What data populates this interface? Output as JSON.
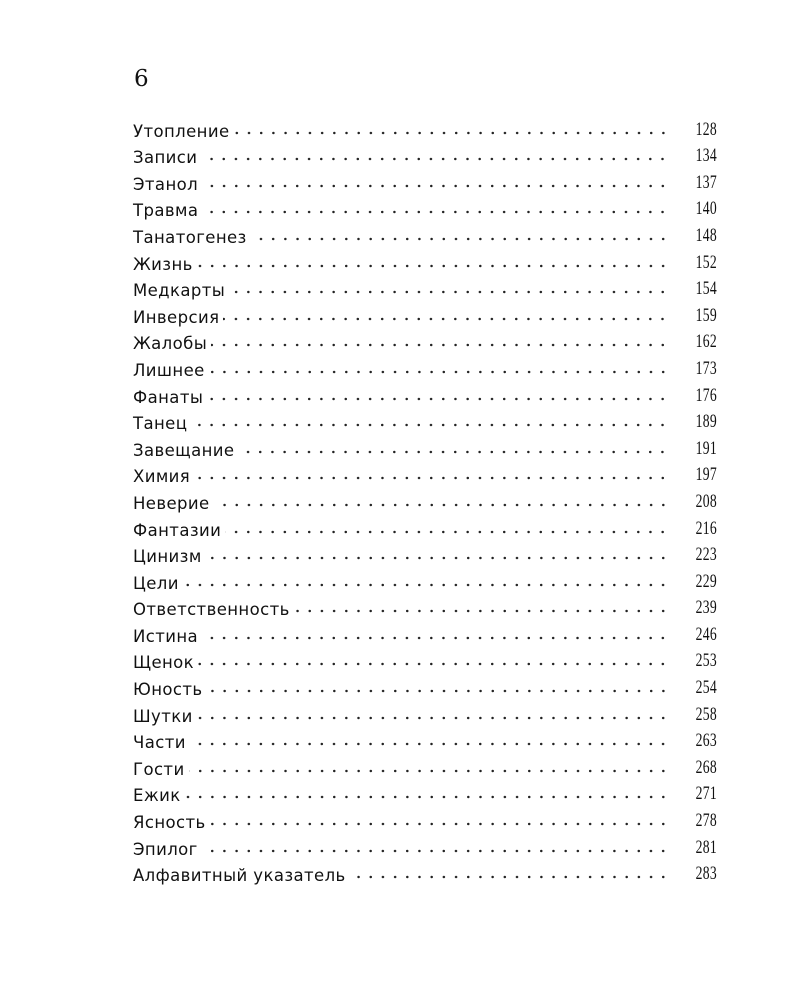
{
  "page_number": "6",
  "entries": [
    {
      "title": "Утопление",
      "page": "128"
    },
    {
      "title": "Записи",
      "page": "134"
    },
    {
      "title": "Этанол",
      "page": "137"
    },
    {
      "title": "Травма",
      "page": "140"
    },
    {
      "title": "Танатогенез",
      "page": "148"
    },
    {
      "title": "Жизнь",
      "page": "152"
    },
    {
      "title": "Медкарты",
      "page": "154"
    },
    {
      "title": "Инверсия",
      "page": "159"
    },
    {
      "title": "Жалобы",
      "page": "162"
    },
    {
      "title": "Лишнее",
      "page": "173"
    },
    {
      "title": "Фанаты",
      "page": "176"
    },
    {
      "title": "Танец",
      "page": "189"
    },
    {
      "title": "Завещание",
      "page": "191"
    },
    {
      "title": "Химия",
      "page": "197"
    },
    {
      "title": "Неверие",
      "page": "208"
    },
    {
      "title": "Фантазии",
      "page": "216"
    },
    {
      "title": "Цинизм",
      "page": "223"
    },
    {
      "title": "Цели",
      "page": "229"
    },
    {
      "title": "Ответственность",
      "page": "239"
    },
    {
      "title": "Истина",
      "page": "246"
    },
    {
      "title": "Щенок",
      "page": "253"
    },
    {
      "title": "Юность",
      "page": "254"
    },
    {
      "title": "Шутки",
      "page": "258"
    },
    {
      "title": "Части",
      "page": "263"
    },
    {
      "title": "Гости",
      "page": "268"
    },
    {
      "title": "Ежик",
      "page": "271"
    },
    {
      "title": "Ясность",
      "page": "278"
    },
    {
      "title": "Эпилог",
      "page": "281"
    },
    {
      "title": "Алфавитный указатель",
      "page": "283"
    }
  ]
}
